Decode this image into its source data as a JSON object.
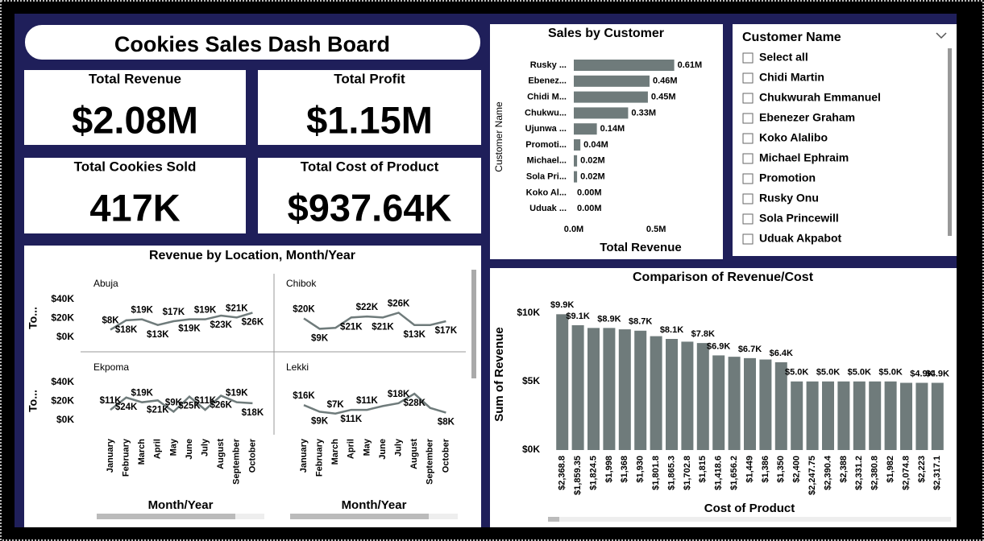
{
  "title": "Cookies Sales Dash Board",
  "cards": [
    {
      "label": "Total Revenue",
      "value": "$2.08M"
    },
    {
      "label": "Total Profit",
      "value": "$1.15M"
    },
    {
      "label": "Total Cookies Sold",
      "value": "417K"
    },
    {
      "label": "Total Cost of Product",
      "value": "$937.64K"
    }
  ],
  "slicer": {
    "title": "Customer Name",
    "items": [
      "Select all",
      "Chidi Martin",
      "Chukwurah Emmanuel",
      "Ebenezer Graham",
      "Koko Alalibo",
      "Michael Ephraim",
      "Promotion",
      "Rusky Onu",
      "Sola Princewill",
      "Uduak Akpabot"
    ]
  },
  "chart_data": [
    {
      "type": "hbar",
      "title": "Sales by Customer",
      "xlabel": "Total Revenue",
      "ylabel": "Customer Name",
      "categories": [
        "Rusky ...",
        "Ebenez...",
        "Chidi M...",
        "Chukwu...",
        "Ujunwa ...",
        "Promoti...",
        "Michael...",
        "Sola Pri...",
        "Koko Al...",
        "Uduak ..."
      ],
      "values": [
        0.61,
        0.46,
        0.45,
        0.33,
        0.14,
        0.04,
        0.02,
        0.02,
        0.0,
        0.0
      ],
      "value_labels": [
        "0.61M",
        "0.46M",
        "0.45M",
        "0.33M",
        "0.14M",
        "0.04M",
        "0.02M",
        "0.02M",
        "0.00M",
        "0.00M"
      ],
      "color": "#6f7b7b",
      "xlim": [
        0,
        0.7
      ],
      "xticks": [
        {
          "value": 0,
          "label": "0.0M"
        },
        {
          "value": 0.5,
          "label": "0.5M"
        }
      ]
    },
    {
      "type": "line",
      "title": "Revenue by Location, Month/Year",
      "xlabel": "Month/Year",
      "ylabel": "To...",
      "categories": [
        "January",
        "February",
        "March",
        "April",
        "May",
        "June",
        "July",
        "August",
        "September",
        "October"
      ],
      "color": "#6f7b7b",
      "ylim": [
        0,
        40
      ],
      "yticks": [
        {
          "value": 40,
          "label": "$40K"
        },
        {
          "value": 20,
          "label": "$20K"
        },
        {
          "value": 0,
          "label": "$0K"
        }
      ],
      "series": [
        {
          "name": "Abuja",
          "values": [
            8,
            18,
            19,
            13,
            17,
            19,
            19,
            23,
            21,
            26
          ],
          "value_labels": [
            "$8K",
            "$18K",
            "$19K",
            "$13K",
            "$17K",
            "$19K",
            "$19K",
            "$23K",
            "$21K",
            "$26K"
          ]
        },
        {
          "name": "Chibok",
          "values": [
            20,
            9,
            10,
            21,
            22,
            21,
            26,
            13,
            13,
            17
          ],
          "value_labels": [
            "$20K",
            "$9K",
            null,
            "$21K",
            "$22K",
            "$21K",
            "$26K",
            "$13K",
            null,
            "$17K"
          ]
        },
        {
          "name": "Ekpoma",
          "values": [
            11,
            24,
            19,
            21,
            9,
            25,
            11,
            26,
            19,
            18
          ],
          "value_labels": [
            "$11K",
            "$24K",
            "$19K",
            "$21K",
            "$9K",
            "$25K",
            "$11K",
            "$26K",
            "$19K",
            "$18K"
          ]
        },
        {
          "name": "Lekki",
          "values": [
            16,
            9,
            7,
            11,
            11,
            15,
            18,
            28,
            13,
            8
          ],
          "value_labels": [
            "$16K",
            "$9K",
            "$7K",
            "$11K",
            "$11K",
            null,
            "$18K",
            "$28K",
            null,
            "$8K"
          ]
        }
      ]
    },
    {
      "type": "bar",
      "title": "Comparison of Revenue/Cost",
      "xlabel": "Cost of Product",
      "ylabel": "Sum of Revenue",
      "categories": [
        "$2,368.8",
        "$1,859.35",
        "$1,824.5",
        "$1,998",
        "$1,368",
        "$1,930",
        "$1,801.8",
        "$1,865.3",
        "$1,702.8",
        "$1,815",
        "$1,418.6",
        "$1,656.2",
        "$1,449",
        "$1,386",
        "$1,350",
        "$2,400",
        "$2,247.75",
        "$2,390.4",
        "$2,388",
        "$2,331.2",
        "$2,380.8",
        "$1,982",
        "$2,074.8",
        "$2,223",
        "$2,317.1"
      ],
      "values": [
        9.9,
        9.1,
        8.9,
        8.9,
        8.8,
        8.7,
        8.3,
        8.1,
        7.9,
        7.8,
        6.9,
        6.8,
        6.7,
        6.6,
        6.4,
        5.0,
        5.0,
        5.0,
        5.0,
        5.0,
        5.0,
        5.0,
        4.9,
        4.9,
        4.9
      ],
      "value_labels": [
        "$9.9K",
        "$9.1K",
        null,
        "$8.9K",
        null,
        "$8.7K",
        null,
        "$8.1K",
        null,
        "$7.8K",
        "$6.9K",
        null,
        "$6.7K",
        null,
        "$6.4K",
        "$5.0K",
        null,
        "$5.0K",
        null,
        "$5.0K",
        null,
        "$5.0K",
        null,
        "$4.9K",
        "$4.9K"
      ],
      "color": "#6f7b7b",
      "ylim": [
        0,
        10.8
      ],
      "yticks": [
        {
          "value": 10,
          "label": "$10K"
        },
        {
          "value": 5,
          "label": "$5K"
        },
        {
          "value": 0,
          "label": "$0K"
        }
      ]
    }
  ]
}
